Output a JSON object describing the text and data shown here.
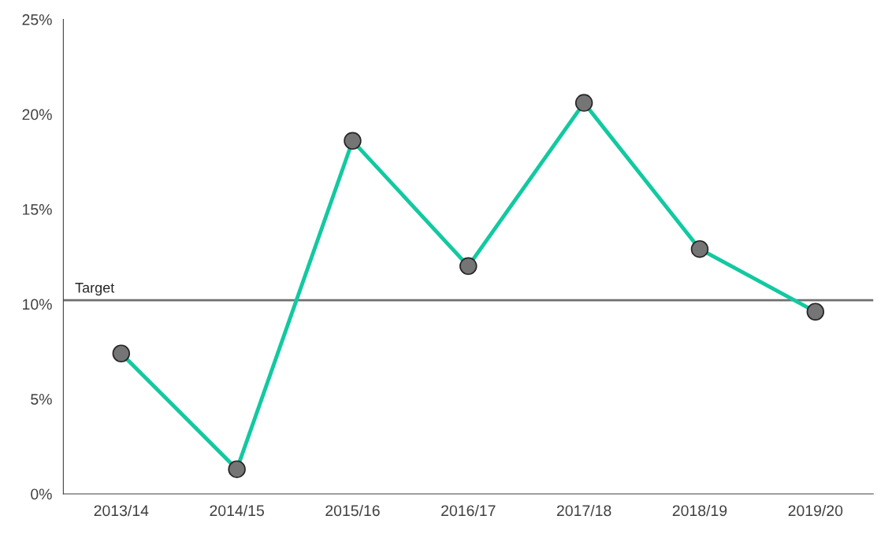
{
  "chart_data": {
    "type": "line",
    "categories": [
      "2013/14",
      "2014/15",
      "2015/16",
      "2016/17",
      "2017/18",
      "2018/19",
      "2019/20"
    ],
    "series": [
      {
        "color": "#12c9a0",
        "values": [
          7.4,
          1.3,
          18.6,
          12.0,
          20.6,
          12.9,
          9.6
        ]
      }
    ],
    "marker": "circle",
    "line_style": "solid",
    "ylim": [
      0,
      25
    ],
    "yticks": [
      {
        "value": 0,
        "label": "0%"
      },
      {
        "value": 5,
        "label": "5%"
      },
      {
        "value": 10,
        "label": "10%"
      },
      {
        "value": 15,
        "label": "15%"
      },
      {
        "value": 20,
        "label": "20%"
      },
      {
        "value": 25,
        "label": "25%"
      }
    ],
    "ref_lines": [
      {
        "axis": "y",
        "value": 10.2,
        "label": "Target",
        "color": "#707070"
      }
    ],
    "grid": false,
    "legend": false
  }
}
